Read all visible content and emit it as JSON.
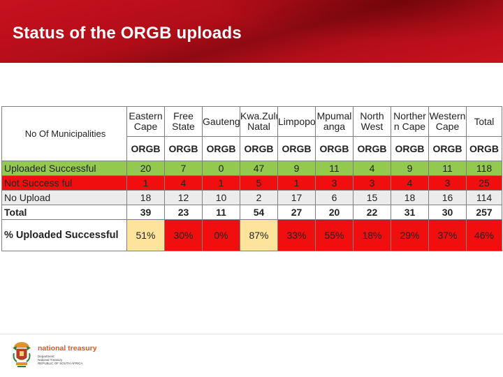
{
  "slide": {
    "title": "Status of the ORGB uploads"
  },
  "table": {
    "row_header_label": "No Of Municipalities",
    "provinces": [
      {
        "line1": "Eastern",
        "line2": "Cape"
      },
      {
        "line1": "Free",
        "line2": "State"
      },
      {
        "line1": "Gauteng",
        "line2": ""
      },
      {
        "line1": "Kwa.Zulu-",
        "line2": "Natal"
      },
      {
        "line1": "Limpopo",
        "line2": ""
      },
      {
        "line1": "Mpumal",
        "line2": "anga"
      },
      {
        "line1": "North",
        "line2": "West"
      },
      {
        "line1": "Norther",
        "line2": "n Cape"
      },
      {
        "line1": "Western",
        "line2": "Cape"
      },
      {
        "line1": "Total",
        "line2": ""
      }
    ],
    "subheaders": [
      "ORGB",
      "ORGB",
      "ORGB",
      "ORGB",
      "ORGB",
      "ORGB",
      "ORGB",
      "ORGB",
      "ORGB",
      "ORGB"
    ],
    "rows": [
      {
        "label": "Uploaded Successful",
        "values": [
          "20",
          "7",
          "0",
          "47",
          "9",
          "11",
          "4",
          "9",
          "11",
          "118"
        ]
      },
      {
        "label": "Not Success ful",
        "values": [
          "1",
          "4",
          "1",
          "5",
          "1",
          "3",
          "3",
          "4",
          "3",
          "25"
        ]
      },
      {
        "label": "No Upload",
        "values": [
          "18",
          "12",
          "10",
          "2",
          "17",
          "6",
          "15",
          "18",
          "16",
          "114"
        ]
      },
      {
        "label": "Total",
        "values": [
          "39",
          "23",
          "11",
          "54",
          "27",
          "20",
          "22",
          "31",
          "30",
          "257"
        ]
      }
    ],
    "percent_row": {
      "label": "% Uploaded Successful",
      "values": [
        "51%",
        "30%",
        "0%",
        "87%",
        "33%",
        "55%",
        "18%",
        "29%",
        "37%",
        "46%"
      ],
      "colors": [
        "#fde49a",
        "#f10e0e",
        "#f10e0e",
        "#fde49a",
        "#f10e0e",
        "#f10e0e",
        "#f10e0e",
        "#f10e0e",
        "#f10e0e",
        "#f10e0e"
      ]
    }
  },
  "logo": {
    "brand": "national treasury",
    "sub1": "Department:",
    "sub2": "National Treasury",
    "sub3": "REPUBLIC OF SOUTH AFRICA"
  }
}
